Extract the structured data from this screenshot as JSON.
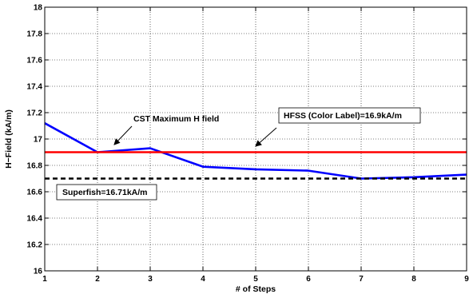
{
  "chart_data": {
    "type": "line",
    "title": "",
    "xlabel": "# of Steps",
    "ylabel": "H−Field (kA/m)",
    "xlim": [
      1,
      9
    ],
    "ylim": [
      16,
      18
    ],
    "x_ticks": [
      1,
      2,
      3,
      4,
      5,
      6,
      7,
      8,
      9
    ],
    "y_ticks": [
      16,
      16.2,
      16.4,
      16.6,
      16.8,
      17,
      17.2,
      17.4,
      17.6,
      17.8,
      18
    ],
    "x_tick_labels": [
      "1",
      "2",
      "3",
      "4",
      "5",
      "6",
      "7",
      "8",
      "9"
    ],
    "y_tick_labels": [
      "16",
      "16.2",
      "16.4",
      "16.6",
      "16.8",
      "17",
      "17.2",
      "17.4",
      "17.6",
      "17.8",
      "18"
    ],
    "grid": true,
    "series": [
      {
        "color": "#0000ff",
        "style": "solid",
        "x": [
          1,
          2,
          3,
          4,
          5,
          6,
          7,
          8,
          9
        ],
        "values": [
          17.12,
          16.9,
          16.93,
          16.79,
          16.77,
          16.76,
          16.7,
          16.71,
          16.73
        ]
      },
      {
        "color": "#ff0000",
        "style": "solid",
        "x": [
          1,
          9
        ],
        "values": [
          16.9,
          16.9
        ]
      },
      {
        "color": "#000000",
        "style": "dashed",
        "x": [
          1,
          9
        ],
        "values": [
          16.7,
          16.7
        ]
      }
    ],
    "annotations": [
      {
        "text": "CST Maximum H field",
        "boxed": false,
        "arrow_to": [
          2.3,
          16.91
        ]
      },
      {
        "text": "HFSS (Color Label)=16.9kA/m",
        "boxed": true,
        "arrow_to": [
          5,
          16.9
        ]
      },
      {
        "text": "Superfish=16.71kA/m",
        "boxed": true
      }
    ]
  }
}
